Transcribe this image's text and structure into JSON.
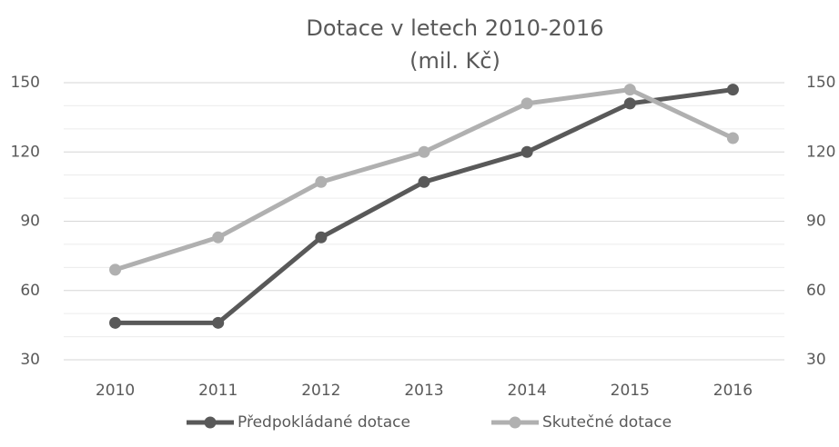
{
  "chart_data": {
    "type": "line",
    "title": "Dotace v letech 2010-2016",
    "subtitle": "(mil. Kč)",
    "categories": [
      "2010",
      "2011",
      "2012",
      "2013",
      "2014",
      "2015",
      "2016"
    ],
    "series": [
      {
        "name": "Předpokládané dotace",
        "color": "#595959",
        "values": [
          46,
          46,
          83,
          107,
          120,
          141,
          147
        ]
      },
      {
        "name": "Skutečné dotace",
        "color": "#b0b0b0",
        "values": [
          69,
          83,
          107,
          120,
          141,
          147,
          126
        ]
      }
    ],
    "ylim": [
      30,
      150
    ],
    "yticks": [
      30,
      60,
      90,
      120,
      150
    ],
    "y2lim": [
      30,
      150
    ],
    "y2ticks": [
      30,
      60,
      90,
      120,
      150
    ],
    "minor_yticks": [
      40,
      50,
      70,
      80,
      100,
      110,
      130,
      140
    ],
    "grid": true,
    "legend": "bottom"
  }
}
